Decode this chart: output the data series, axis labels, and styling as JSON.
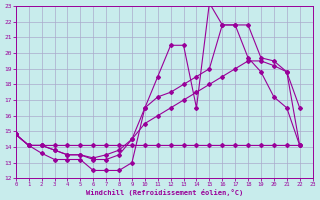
{
  "xlabel": "Windchill (Refroidissement éolien,°C)",
  "bg_color": "#c8ecec",
  "line_color": "#990099",
  "grid_color": "#aaaacc",
  "xmin": 0,
  "xmax": 23,
  "ymin": 12,
  "ymax": 23,
  "lines": [
    {
      "x": [
        0,
        1,
        2,
        3,
        4,
        5,
        6,
        7,
        8,
        9,
        10,
        11,
        12,
        13,
        14,
        15,
        16,
        17,
        18,
        19,
        20,
        21,
        22
      ],
      "y": [
        14.8,
        14.1,
        13.6,
        13.2,
        13.2,
        13.2,
        12.5,
        12.5,
        12.5,
        13.0,
        16.5,
        18.5,
        20.5,
        20.5,
        16.5,
        23.2,
        21.8,
        21.8,
        19.7,
        18.8,
        17.2,
        16.5,
        14.1
      ]
    },
    {
      "x": [
        0,
        1,
        2,
        3,
        4,
        5,
        6,
        7,
        8,
        9,
        10,
        11,
        12,
        13,
        14,
        15,
        16,
        17,
        18,
        19,
        20,
        21,
        22
      ],
      "y": [
        14.8,
        14.1,
        14.1,
        13.8,
        13.5,
        13.5,
        13.2,
        13.2,
        13.5,
        14.5,
        16.5,
        17.2,
        17.5,
        18.0,
        18.5,
        19.0,
        21.8,
        21.8,
        21.8,
        19.7,
        19.5,
        18.8,
        14.1
      ]
    },
    {
      "x": [
        0,
        1,
        2,
        3,
        4,
        5,
        6,
        7,
        8,
        9,
        10,
        11,
        12,
        13,
        14,
        15,
        16,
        17,
        18,
        19,
        20,
        21,
        22
      ],
      "y": [
        14.8,
        14.1,
        14.1,
        13.8,
        13.5,
        13.5,
        13.3,
        13.5,
        13.8,
        14.5,
        15.5,
        16.0,
        16.5,
        17.0,
        17.5,
        18.0,
        18.5,
        19.0,
        19.5,
        19.5,
        19.2,
        18.8,
        16.5
      ]
    },
    {
      "x": [
        0,
        1,
        2,
        3,
        4,
        5,
        6,
        7,
        8,
        9,
        10,
        11,
        12,
        13,
        14,
        15,
        16,
        17,
        18,
        19,
        20,
        21,
        22
      ],
      "y": [
        14.8,
        14.1,
        14.1,
        14.1,
        14.1,
        14.1,
        14.1,
        14.1,
        14.1,
        14.1,
        14.1,
        14.1,
        14.1,
        14.1,
        14.1,
        14.1,
        14.1,
        14.1,
        14.1,
        14.1,
        14.1,
        14.1,
        14.1
      ]
    }
  ]
}
